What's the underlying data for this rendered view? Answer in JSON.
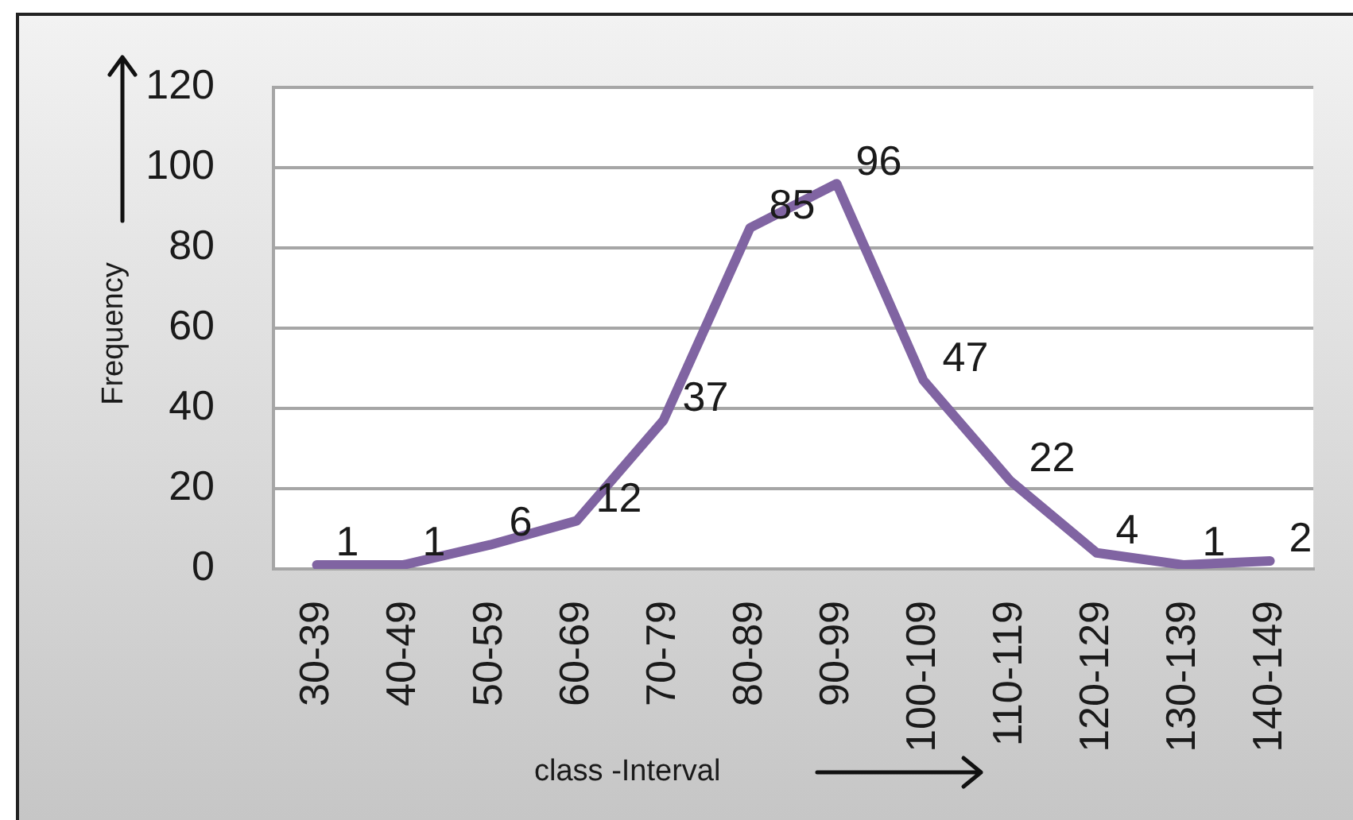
{
  "chart_data": {
    "type": "line",
    "xlabel": "class -Interval",
    "ylabel": "Frequency",
    "categories": [
      "30-39",
      "40-49",
      "50-59",
      "60-69",
      "70-79",
      "80-89",
      "90-99",
      "100-109",
      "110-119",
      "120-129",
      "130-139",
      "140-149"
    ],
    "values": [
      1,
      1,
      6,
      12,
      37,
      85,
      96,
      47,
      22,
      4,
      1,
      2
    ],
    "color": "#8064a2",
    "ylim": [
      0,
      120
    ],
    "yticks": [
      0,
      20,
      40,
      60,
      80,
      100,
      120
    ],
    "grid": "y",
    "data_labels": true,
    "marker": "none",
    "line_style": "solid"
  }
}
